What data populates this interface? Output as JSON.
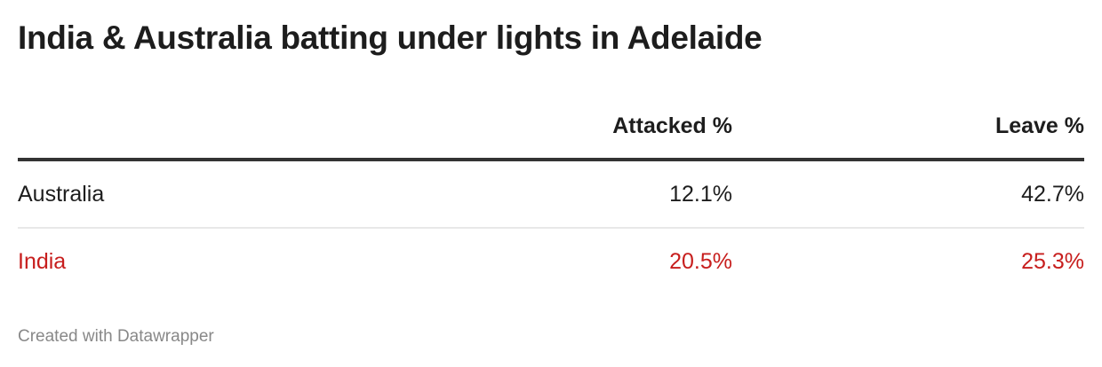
{
  "title": "India & Australia batting under lights in Adelaide",
  "table": {
    "columns": [
      "",
      "Attacked %",
      "Leave %"
    ],
    "rows": [
      {
        "team": "Australia",
        "attacked": "12.1%",
        "leave": "42.7%",
        "color": "#1d1d1d"
      },
      {
        "team": "India",
        "attacked": "20.5%",
        "leave": "25.3%",
        "color": "#c71e1d"
      }
    ]
  },
  "footer": "Created with Datawrapper"
}
